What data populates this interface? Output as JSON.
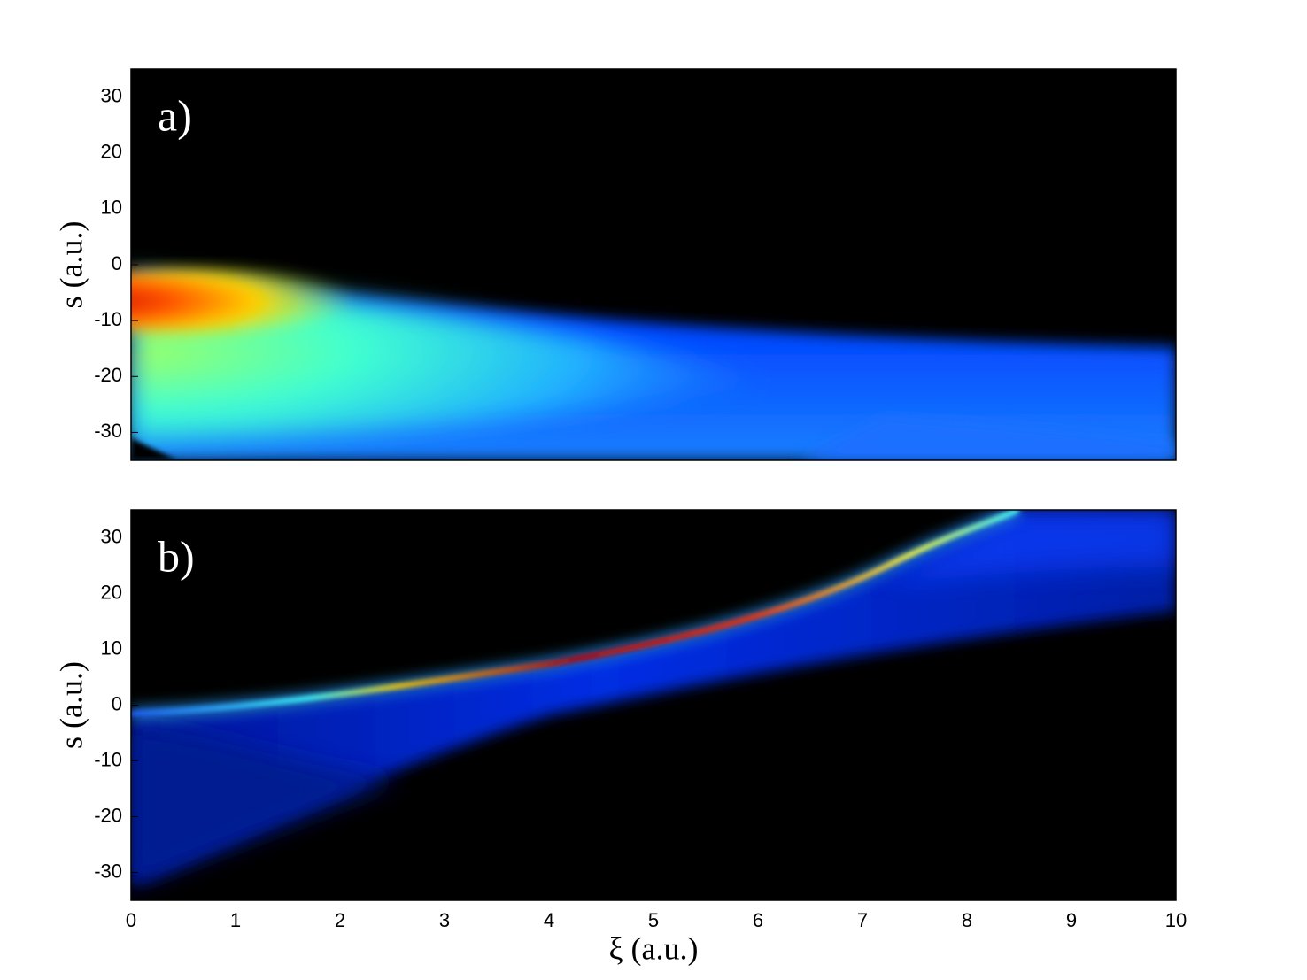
{
  "chart_data": [
    {
      "type": "heatmap",
      "label": "a)",
      "ylabel": "s (a.u.)",
      "ylim": [
        -35,
        35
      ],
      "yticks": [
        -30,
        -20,
        -10,
        0,
        10,
        20,
        30
      ]
    },
    {
      "type": "heatmap",
      "label": "b)",
      "ylabel": "s (a.u.)",
      "xlabel": "ξ (a.u.)",
      "xlim": [
        0,
        10
      ],
      "xticks": [
        0,
        1,
        2,
        3,
        4,
        5,
        6,
        7,
        8,
        9,
        10
      ],
      "ylim": [
        -35,
        35
      ],
      "yticks": [
        -30,
        -20,
        -10,
        0,
        10,
        20,
        30
      ]
    }
  ]
}
